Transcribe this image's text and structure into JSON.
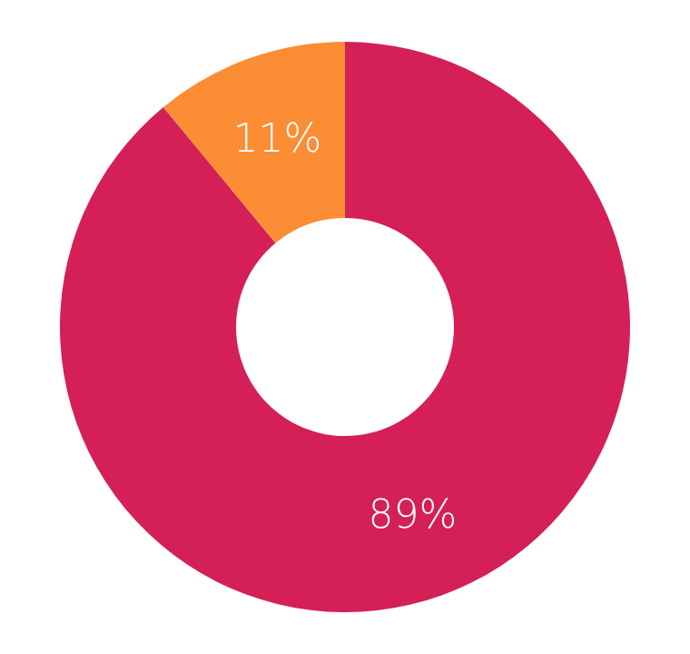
{
  "chart_data": {
    "type": "donut",
    "categories": [
      null,
      null
    ],
    "values": [
      89,
      11
    ],
    "colors": [
      "#d41f57",
      "#fb8d34"
    ],
    "value_labels": [
      "89%",
      "11%"
    ],
    "legend": false
  }
}
